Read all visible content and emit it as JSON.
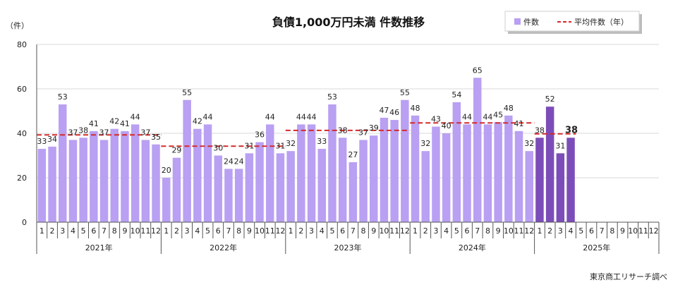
{
  "chart_data": {
    "type": "bar",
    "title": "負債1,000万円未満 件数推移",
    "ylabel": "（件）",
    "ylim": [
      0,
      80
    ],
    "yticks": [
      0,
      20,
      40,
      60,
      80
    ],
    "grid": true,
    "legend_position": "top-right",
    "colors": {
      "bar": "#b9a0f2",
      "bar_highlight": "#7c4db8",
      "average_line": "#d42a2a",
      "grid": "#d9d9d9",
      "axis": "#555555"
    },
    "years": [
      {
        "label": "2021年",
        "months": [
          "1",
          "2",
          "3",
          "4",
          "5",
          "6",
          "7",
          "8",
          "9",
          "10",
          "11",
          "12"
        ],
        "values": [
          33,
          34,
          53,
          37,
          38,
          41,
          37,
          42,
          41,
          44,
          37,
          35
        ],
        "average": 39.3
      },
      {
        "label": "2022年",
        "months": [
          "1",
          "2",
          "3",
          "4",
          "5",
          "6",
          "7",
          "8",
          "9",
          "10",
          "11",
          "12"
        ],
        "values": [
          20,
          29,
          55,
          42,
          44,
          30,
          24,
          24,
          31,
          36,
          44,
          31
        ],
        "average": 34.2
      },
      {
        "label": "2023年",
        "months": [
          "1",
          "2",
          "3",
          "4",
          "5",
          "6",
          "7",
          "8",
          "9",
          "10",
          "11",
          "12"
        ],
        "values": [
          32,
          44,
          44,
          33,
          53,
          38,
          27,
          37,
          39,
          47,
          46,
          55
        ],
        "average": 41.3
      },
      {
        "label": "2024年",
        "months": [
          "1",
          "2",
          "3",
          "4",
          "5",
          "6",
          "7",
          "8",
          "9",
          "10",
          "11",
          "12"
        ],
        "values": [
          48,
          32,
          43,
          40,
          54,
          44,
          65,
          44,
          45,
          48,
          41,
          32
        ],
        "average": 44.7
      },
      {
        "label": "2025年",
        "months": [
          "1",
          "2",
          "3",
          "4",
          "5",
          "6",
          "7",
          "8",
          "9",
          "10",
          "11",
          "12"
        ],
        "values": [
          38,
          52,
          31,
          38,
          null,
          null,
          null,
          null,
          null,
          null,
          null,
          null
        ],
        "average": 39.75,
        "highlight": true
      }
    ],
    "data_labels": [
      [
        "33",
        "34",
        "53",
        "37",
        "38",
        "41",
        "37",
        "42",
        "41",
        "44",
        "37",
        "35"
      ],
      [
        "20",
        "29",
        "55",
        "42",
        "44",
        "30",
        "24",
        "24",
        "31",
        "36",
        "44",
        "31"
      ],
      [
        "32",
        "44",
        "44",
        "33",
        "53",
        "38",
        "27",
        "37",
        "39",
        "47",
        "46",
        "55"
      ],
      [
        "48",
        "32",
        "43",
        "40",
        "54",
        "44",
        "65",
        "44",
        "45",
        "48",
        "41",
        "32"
      ],
      [
        "38",
        "52",
        "31",
        "38"
      ]
    ],
    "legend": [
      {
        "label": "件数",
        "kind": "bar"
      },
      {
        "label": "平均件数（年）",
        "kind": "line"
      }
    ],
    "source": "東京商工リサーチ調べ"
  }
}
